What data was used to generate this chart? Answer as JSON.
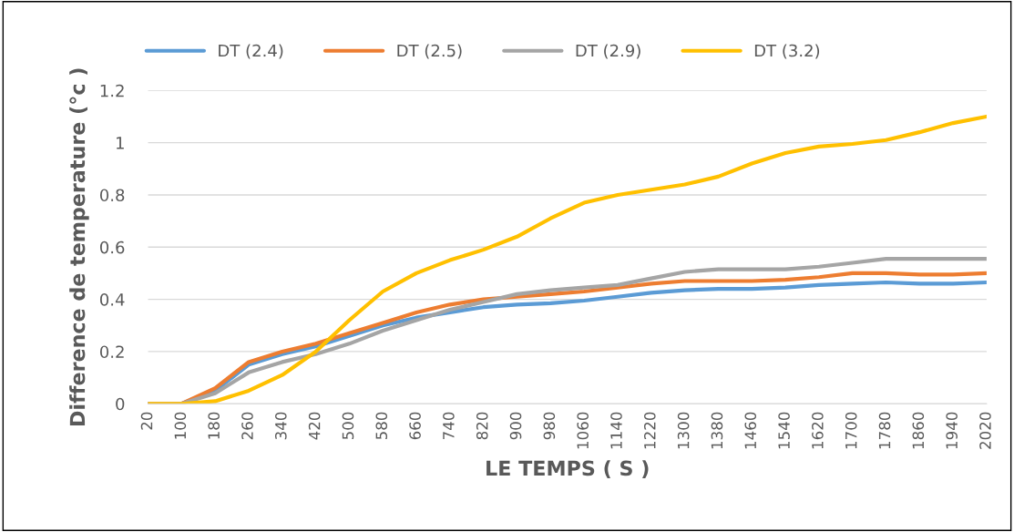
{
  "chart_data": {
    "type": "line",
    "xlabel": "LE TEMPS ( S )",
    "ylabel": "Difference de temperature (°c )",
    "x": [
      20,
      100,
      180,
      260,
      340,
      420,
      500,
      580,
      660,
      740,
      820,
      900,
      980,
      1060,
      1140,
      1220,
      1300,
      1380,
      1460,
      1540,
      1620,
      1700,
      1780,
      1860,
      1940,
      2020
    ],
    "series": [
      {
        "name": "DT (2.4)",
        "color": "#5b9bd5",
        "values": [
          0,
          0,
          0.05,
          0.15,
          0.19,
          0.22,
          0.26,
          0.3,
          0.33,
          0.35,
          0.37,
          0.38,
          0.385,
          0.395,
          0.41,
          0.425,
          0.435,
          0.44,
          0.44,
          0.445,
          0.455,
          0.46,
          0.465,
          0.46,
          0.46,
          0.465
        ]
      },
      {
        "name": "DT (2.5)",
        "color": "#ed7d31",
        "values": [
          0,
          0,
          0.06,
          0.16,
          0.2,
          0.23,
          0.27,
          0.31,
          0.35,
          0.38,
          0.4,
          0.41,
          0.42,
          0.43,
          0.445,
          0.46,
          0.47,
          0.47,
          0.47,
          0.475,
          0.485,
          0.5,
          0.5,
          0.495,
          0.495,
          0.5
        ]
      },
      {
        "name": "DT (2.9)",
        "color": "#a5a5a5",
        "values": [
          0,
          0,
          0.04,
          0.12,
          0.16,
          0.19,
          0.23,
          0.28,
          0.32,
          0.36,
          0.39,
          0.42,
          0.435,
          0.445,
          0.455,
          0.48,
          0.505,
          0.515,
          0.515,
          0.515,
          0.525,
          0.54,
          0.555,
          0.555,
          0.555,
          0.555
        ]
      },
      {
        "name": "DT (3.2)",
        "color": "#ffc000",
        "values": [
          0,
          0,
          0.01,
          0.05,
          0.11,
          0.2,
          0.32,
          0.43,
          0.5,
          0.55,
          0.59,
          0.64,
          0.71,
          0.77,
          0.8,
          0.82,
          0.84,
          0.87,
          0.92,
          0.96,
          0.985,
          0.995,
          1.01,
          1.04,
          1.075,
          1.1
        ]
      }
    ],
    "xlim": [
      20,
      2020
    ],
    "xticks": [
      20,
      100,
      180,
      260,
      340,
      420,
      500,
      580,
      660,
      740,
      820,
      900,
      980,
      1060,
      1140,
      1220,
      1300,
      1380,
      1460,
      1540,
      1620,
      1700,
      1780,
      1860,
      1940,
      2020
    ],
    "ylim": [
      0,
      1.2
    ],
    "yticks": [
      0,
      0.2,
      0.4,
      0.6,
      0.8,
      1,
      1.2
    ],
    "grid": "y",
    "legend": "top",
    "marker": "none",
    "line_style": "solid"
  }
}
